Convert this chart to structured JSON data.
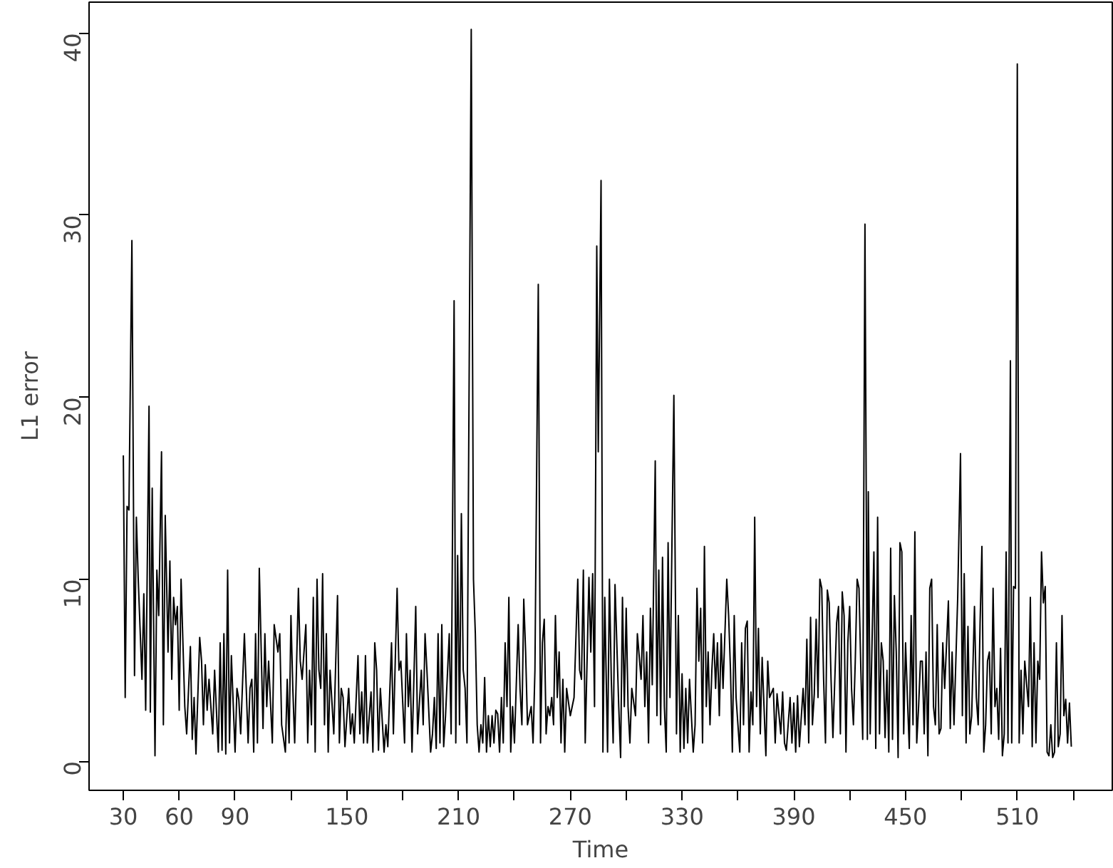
{
  "chart_data": {
    "type": "line",
    "xlabel": "Time",
    "ylabel": "L1 error",
    "color": "#000000",
    "xlim": [
      11.6,
      561
    ],
    "ylim": [
      -1.6,
      41.7
    ],
    "xticks": [
      30,
      60,
      90,
      {
        "value": 120,
        "label": null
      },
      150,
      {
        "value": 180,
        "label": null
      },
      210,
      {
        "value": 240,
        "label": null
      },
      270,
      {
        "value": 300,
        "label": null
      },
      330,
      {
        "value": 360,
        "label": null
      },
      390,
      {
        "value": 420,
        "label": null
      },
      450,
      {
        "value": 480,
        "label": null
      },
      510,
      {
        "value": 540,
        "label": null
      }
    ],
    "yticks": [
      0,
      10,
      20,
      30,
      40
    ],
    "x": [
      30,
      31,
      32,
      33,
      34.6,
      36,
      37,
      38,
      40,
      41,
      42,
      43.8,
      44.5,
      45.5,
      47,
      48,
      49,
      50.5,
      51.5,
      52.5,
      54,
      55,
      56,
      57,
      58,
      59,
      60,
      61,
      63,
      64,
      66,
      67,
      68,
      69,
      71,
      72,
      73,
      74,
      75,
      76,
      78,
      79,
      81,
      82,
      83,
      84,
      85,
      86,
      87,
      88,
      90,
      91,
      92,
      93,
      95,
      96,
      97,
      98,
      99,
      100,
      101,
      102,
      103,
      105,
      106,
      107,
      108,
      110,
      111,
      113,
      114,
      115,
      117,
      118,
      119,
      120,
      121,
      122,
      124,
      125,
      126,
      128,
      129,
      130,
      131,
      132,
      133,
      134,
      135,
      136,
      137,
      138,
      139,
      140,
      141,
      143,
      145,
      146,
      147,
      148,
      149,
      151,
      152,
      153,
      154,
      156,
      157,
      158,
      159,
      160,
      161,
      163,
      164,
      165,
      166,
      167,
      168,
      170,
      171,
      172,
      174,
      175,
      177,
      178,
      179,
      181,
      182,
      183,
      184,
      185,
      187,
      188,
      190,
      191,
      192,
      193,
      195,
      196,
      197,
      198,
      199,
      200,
      201,
      202,
      203,
      205,
      206,
      207.6,
      208.5,
      209.5,
      210.5,
      211.5,
      212.5,
      213.5,
      214.5,
      216.8,
      218,
      219,
      220,
      221,
      222,
      223,
      224,
      225,
      226,
      227,
      228,
      229,
      230,
      231,
      232,
      233,
      234,
      235,
      236,
      237,
      238,
      239,
      240,
      242,
      243,
      244,
      245,
      246,
      247,
      249,
      250,
      251,
      252.8,
      254,
      255,
      256,
      257,
      258,
      259,
      260,
      261,
      262,
      263,
      264,
      265,
      266,
      267,
      268,
      270,
      271,
      272,
      274,
      275,
      276,
      277,
      278,
      280,
      281,
      282,
      283,
      284.2,
      285,
      286.5,
      287.5,
      288.5,
      290,
      291,
      292,
      293,
      294,
      296,
      297,
      298,
      299,
      300,
      301,
      302,
      303,
      305,
      306,
      308,
      309,
      310,
      311,
      312,
      313,
      314,
      315.6,
      316.5,
      317.5,
      318.5,
      319.5,
      320.5,
      321.5,
      322.5,
      323.5,
      325.6,
      327,
      328,
      329,
      330,
      331,
      332,
      333,
      334,
      336,
      337,
      338,
      339,
      340,
      341,
      342,
      343,
      344,
      345,
      346,
      347,
      348,
      349,
      350,
      351,
      352,
      354,
      355,
      356,
      357,
      358,
      359,
      361,
      362,
      363,
      364,
      365,
      366,
      367,
      368,
      369,
      370,
      371,
      372,
      373,
      374,
      375,
      376,
      377,
      379,
      380,
      381,
      383,
      384,
      385,
      386,
      388,
      389,
      390,
      391,
      392,
      393,
      395,
      396,
      397,
      398,
      399,
      400,
      401,
      402,
      403,
      404,
      405,
      406,
      407,
      408,
      409,
      410,
      411,
      413,
      414,
      415,
      416,
      417,
      418,
      419,
      420,
      421,
      422,
      423,
      424,
      425,
      426,
      427,
      428.2,
      429.5,
      430,
      431,
      432,
      433,
      434,
      435,
      436,
      437,
      438,
      439,
      440,
      441,
      442,
      443,
      444,
      445,
      446,
      447,
      448,
      449,
      450,
      451,
      452,
      453,
      454,
      455,
      456,
      457,
      458,
      459,
      460,
      461,
      462,
      463,
      464,
      465,
      466,
      467,
      468,
      469,
      470,
      471,
      473,
      474,
      475,
      476,
      478,
      479.5,
      480.5,
      481.5,
      482.5,
      483.5,
      484.5,
      485.5,
      487,
      488,
      489,
      490,
      491,
      492,
      493,
      494,
      495,
      496,
      497,
      498,
      499,
      500,
      501,
      502,
      503,
      504,
      505,
      506.3,
      507,
      508,
      509,
      510,
      511,
      512,
      513,
      514,
      516,
      517,
      518,
      519,
      520,
      521,
      522,
      523,
      524,
      525,
      526,
      527,
      528,
      529,
      530,
      531,
      532,
      533,
      534,
      535,
      536,
      537,
      538,
      539
    ],
    "values": [
      16.8,
      3.5,
      14,
      13.8,
      28.6,
      4.7,
      13.4,
      10,
      4.5,
      9.2,
      2.8,
      19.5,
      2.7,
      15,
      0.3,
      10.5,
      8,
      17,
      2,
      13.5,
      6,
      11,
      4.5,
      9,
      7.5,
      8.5,
      2.8,
      10,
      3,
      1.5,
      6.3,
      1.2,
      3.5,
      0.4,
      6.8,
      5.5,
      2,
      5.3,
      2.8,
      4.5,
      1.5,
      5,
      0.5,
      6.5,
      0.6,
      7,
      0.4,
      10.5,
      1,
      5.8,
      0.5,
      4,
      3.4,
      1.5,
      7,
      4,
      1,
      4,
      4.5,
      0.5,
      7,
      1,
      10.6,
      1.8,
      7,
      3,
      5.5,
      1,
      7.5,
      6,
      7,
      2,
      0.5,
      4.5,
      1,
      8,
      4,
      1,
      9.5,
      5.5,
      4.5,
      7.5,
      1,
      5,
      2,
      9,
      0.5,
      10,
      5,
      4,
      10.3,
      2,
      7,
      0.5,
      5,
      1.5,
      9.1,
      1,
      4,
      3.5,
      0.8,
      4,
      1.5,
      2.6,
      1,
      5.8,
      1.5,
      3.8,
      1,
      5.8,
      1,
      3.8,
      0.5,
      6.5,
      5,
      0.6,
      4,
      0.5,
      2,
      0.8,
      6.5,
      1.5,
      9.5,
      5,
      5.5,
      1,
      7,
      3,
      5,
      0.5,
      8.5,
      1.5,
      5,
      2,
      7,
      5,
      0.5,
      1.5,
      3.5,
      0.7,
      7,
      1,
      7.5,
      0.8,
      2.5,
      7,
      1.5,
      25.3,
      1,
      11.3,
      2,
      13.6,
      5,
      4,
      1,
      40.2,
      10,
      7,
      2,
      0.5,
      2,
      1,
      4.6,
      0.5,
      2.5,
      0.8,
      2.5,
      1,
      2.8,
      2.6,
      0.5,
      3.5,
      1,
      6.5,
      3,
      9,
      0.5,
      3,
      1,
      7.5,
      4,
      2,
      8.9,
      6,
      2,
      3,
      1,
      5,
      26.2,
      1,
      6.5,
      7.8,
      1.5,
      3,
      2.5,
      3.5,
      2,
      8,
      3.5,
      6,
      1,
      4.5,
      0.5,
      4,
      2.5,
      3,
      3.5,
      10,
      5,
      4.5,
      10.5,
      1,
      10.1,
      6,
      10.3,
      3,
      28.3,
      17,
      31.9,
      0.5,
      9,
      0.5,
      10,
      4.5,
      1,
      9.7,
      3,
      0.2,
      9,
      3,
      8.4,
      3,
      1,
      4,
      2.5,
      7,
      4.5,
      8,
      3,
      6,
      1,
      8.4,
      4.2,
      16.5,
      2.5,
      10.5,
      2,
      11.2,
      3,
      0.5,
      12,
      3.5,
      20.1,
      1.5,
      8,
      0.5,
      4.8,
      0.7,
      4,
      1,
      4.5,
      0.5,
      2,
      9.5,
      5.5,
      8.4,
      1,
      11.8,
      3,
      6,
      2,
      5,
      7,
      4,
      6.5,
      2.5,
      7,
      4,
      10,
      8,
      5,
      0.5,
      8,
      3.5,
      0.5,
      6.5,
      2,
      7.3,
      7.7,
      0.5,
      3.8,
      2,
      13.4,
      3,
      7.3,
      1.5,
      5.7,
      3,
      0.3,
      5.5,
      3.5,
      4,
      1,
      3.7,
      1.5,
      3.8,
      1,
      0.6,
      3.5,
      1,
      3.2,
      0.5,
      3.6,
      0.8,
      4,
      2,
      6.7,
      1,
      7.9,
      2,
      3.7,
      7.8,
      3.5,
      10,
      9.5,
      4.5,
      1,
      9.4,
      8.7,
      4.5,
      1.3,
      7.6,
      8.5,
      1.5,
      9.3,
      8,
      0.5,
      6.5,
      8.5,
      4,
      2,
      5.5,
      10,
      9.5,
      5,
      1.2,
      29.5,
      1.2,
      14.8,
      1.5,
      6.5,
      11.5,
      0.7,
      13.4,
      1.5,
      6.5,
      5.5,
      1.3,
      5,
      0.5,
      11.7,
      1.2,
      9.1,
      6,
      0.2,
      12,
      11.5,
      1.5,
      6.5,
      3.5,
      0.7,
      8,
      2,
      12.6,
      1,
      3,
      5.5,
      5.5,
      1.5,
      6,
      0.3,
      9.5,
      10,
      3,
      2,
      7.5,
      1.5,
      1.8,
      6.5,
      4,
      8.8,
      1.8,
      6,
      2,
      9,
      16.9,
      2.5,
      10.3,
      1,
      7.4,
      1.5,
      2.5,
      8.5,
      3.5,
      2,
      7.5,
      11.8,
      0.5,
      2,
      5.5,
      6,
      1.5,
      9.5,
      3,
      4,
      1.2,
      6.2,
      0.3,
      1.5,
      11.5,
      1,
      22,
      1,
      9.6,
      9.5,
      38.3,
      1,
      5,
      1.5,
      5.5,
      3,
      9,
      0.8,
      6.5,
      1,
      5.5,
      4.5,
      11.5,
      8.7,
      9.6,
      0.5,
      0.3,
      2,
      0.2,
      0.5,
      6.5,
      0.8,
      1.5,
      8,
      2.5,
      3.4,
      1,
      3.2,
      0.8
    ]
  }
}
